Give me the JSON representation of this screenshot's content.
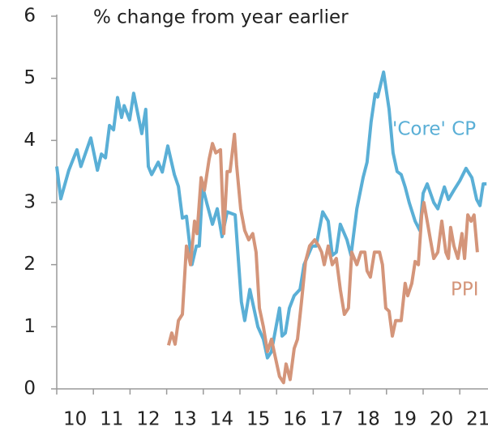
{
  "chart_data": {
    "type": "line",
    "title": "% change from year earlier",
    "xlim": [
      2010,
      2021.77
    ],
    "ylim": [
      0,
      6
    ],
    "yticks": [
      0,
      1,
      2,
      3,
      4,
      5,
      6
    ],
    "xticks": [
      2010,
      2011,
      2012,
      2013,
      2014,
      2015,
      2016,
      2017,
      2018,
      2019,
      2020,
      2021
    ],
    "xtick_labels": [
      {
        "value": 2010.5,
        "label": "10"
      },
      {
        "value": 2011.5,
        "label": "11"
      },
      {
        "value": 2012.5,
        "label": "12"
      },
      {
        "value": 2013.5,
        "label": "13"
      },
      {
        "value": 2014.5,
        "label": "14"
      },
      {
        "value": 2015.5,
        "label": "15"
      },
      {
        "value": 2016.5,
        "label": "16"
      },
      {
        "value": 2017.5,
        "label": "17"
      },
      {
        "value": 2018.5,
        "label": "18"
      },
      {
        "value": 2019.5,
        "label": "19"
      },
      {
        "value": 2020.5,
        "label": "20"
      },
      {
        "value": 2021.5,
        "label": "21"
      }
    ],
    "series": [
      {
        "name": "'Core' CP",
        "color": "#5aafd6",
        "x": [
          2010.0,
          2010.11,
          2010.33,
          2010.55,
          2010.66,
          2010.93,
          2011.11,
          2011.22,
          2011.33,
          2011.44,
          2011.55,
          2011.66,
          2011.77,
          2011.84,
          2011.99,
          2012.1,
          2012.32,
          2012.43,
          2012.5,
          2012.59,
          2012.77,
          2012.88,
          2013.03,
          2013.21,
          2013.32,
          2013.43,
          2013.54,
          2013.69,
          2013.81,
          2013.89,
          2013.98,
          2014.09,
          2014.25,
          2014.38,
          2014.51,
          2014.65,
          2014.87,
          2015.04,
          2015.13,
          2015.27,
          2015.49,
          2015.64,
          2015.75,
          2015.86,
          2016.08,
          2016.15,
          2016.24,
          2016.35,
          2016.48,
          2016.64,
          2016.75,
          2016.97,
          2017.08,
          2017.26,
          2017.41,
          2017.52,
          2017.63,
          2017.74,
          2017.92,
          2018.03,
          2018.19,
          2018.36,
          2018.47,
          2018.58,
          2018.69,
          2018.76,
          2018.92,
          2019.07,
          2019.18,
          2019.29,
          2019.4,
          2019.51,
          2019.62,
          2019.78,
          2019.91,
          2020.0,
          2020.11,
          2020.29,
          2020.4,
          2020.58,
          2020.69,
          2020.84,
          2021.0,
          2021.17,
          2021.33,
          2021.46,
          2021.55,
          2021.64,
          2021.73
        ],
        "values": [
          3.58,
          3.06,
          3.52,
          3.85,
          3.58,
          4.04,
          3.52,
          3.78,
          3.72,
          4.24,
          4.17,
          4.69,
          4.37,
          4.56,
          4.33,
          4.76,
          4.11,
          4.5,
          3.58,
          3.45,
          3.65,
          3.49,
          3.91,
          3.45,
          3.26,
          2.75,
          2.78,
          2.0,
          2.3,
          2.3,
          3.26,
          3.0,
          2.65,
          2.9,
          2.45,
          2.85,
          2.8,
          1.4,
          1.1,
          1.6,
          1.0,
          0.8,
          0.5,
          0.6,
          1.3,
          0.85,
          0.9,
          1.3,
          1.5,
          1.6,
          2.0,
          2.3,
          2.3,
          2.85,
          2.7,
          2.15,
          2.2,
          2.65,
          2.4,
          2.15,
          2.9,
          3.4,
          3.65,
          4.3,
          4.75,
          4.7,
          5.1,
          4.5,
          3.8,
          3.5,
          3.45,
          3.25,
          3.0,
          2.7,
          2.55,
          3.15,
          3.3,
          3.0,
          2.9,
          3.25,
          3.05,
          3.2,
          3.35,
          3.55,
          3.4,
          3.05,
          2.95,
          3.3,
          3.3
        ]
      },
      {
        "name": "PPI",
        "color": "#d4957a",
        "x": [
          2013.05,
          2013.14,
          2013.23,
          2013.32,
          2013.43,
          2013.54,
          2013.65,
          2013.76,
          2013.83,
          2013.94,
          2014.03,
          2014.16,
          2014.25,
          2014.34,
          2014.47,
          2014.56,
          2014.65,
          2014.73,
          2014.85,
          2014.91,
          2015.02,
          2015.13,
          2015.24,
          2015.35,
          2015.44,
          2015.53,
          2015.64,
          2015.75,
          2015.86,
          2015.97,
          2016.08,
          2016.19,
          2016.26,
          2016.37,
          2016.48,
          2016.57,
          2016.68,
          2016.79,
          2016.9,
          2017.04,
          2017.15,
          2017.23,
          2017.3,
          2017.41,
          2017.52,
          2017.63,
          2017.74,
          2017.85,
          2017.96,
          2018.05,
          2018.19,
          2018.3,
          2018.41,
          2018.47,
          2018.56,
          2018.67,
          2018.81,
          2018.89,
          2018.98,
          2019.07,
          2019.16,
          2019.25,
          2019.4,
          2019.51,
          2019.58,
          2019.69,
          2019.78,
          2019.87,
          2019.96,
          2020.02,
          2020.11,
          2020.2,
          2020.29,
          2020.4,
          2020.51,
          2020.62,
          2020.69,
          2020.75,
          2020.84,
          2020.95,
          2021.06,
          2021.13,
          2021.22,
          2021.31,
          2021.39,
          2021.48
        ],
        "values": [
          0.7,
          0.9,
          0.72,
          1.1,
          1.2,
          2.3,
          2.0,
          2.7,
          2.5,
          3.4,
          3.2,
          3.7,
          3.95,
          3.8,
          3.85,
          2.5,
          3.5,
          3.5,
          4.1,
          3.6,
          2.9,
          2.55,
          2.4,
          2.5,
          2.2,
          1.3,
          1.0,
          0.6,
          0.8,
          0.5,
          0.2,
          0.1,
          0.4,
          0.15,
          0.65,
          0.8,
          1.4,
          2.05,
          2.3,
          2.4,
          2.3,
          2.2,
          2.0,
          2.3,
          2.0,
          2.1,
          1.6,
          1.2,
          1.3,
          2.2,
          2.0,
          2.2,
          2.2,
          1.9,
          1.8,
          2.2,
          2.2,
          2.0,
          1.3,
          1.25,
          0.85,
          1.1,
          1.1,
          1.7,
          1.5,
          1.7,
          2.05,
          2.0,
          2.8,
          3.0,
          2.7,
          2.4,
          2.1,
          2.2,
          2.7,
          2.2,
          2.1,
          2.6,
          2.3,
          2.1,
          2.5,
          2.1,
          2.8,
          2.7,
          2.8,
          2.2
        ]
      }
    ]
  }
}
